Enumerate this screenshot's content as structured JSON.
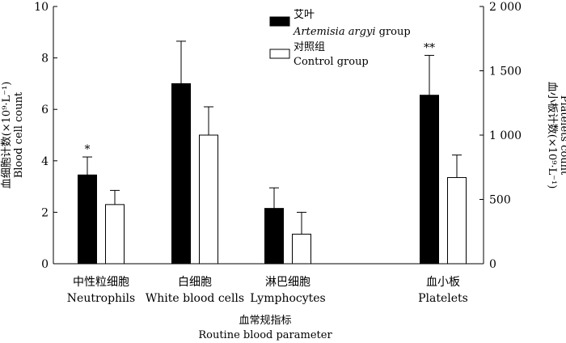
{
  "chart_data": {
    "type": "bar",
    "left_axis": {
      "label_zh": "血细胞计数(×10⁹·L⁻¹)",
      "label_en": "Blood cell count",
      "ylim": [
        0,
        10
      ],
      "ticks": [
        "0",
        "2",
        "4",
        "6",
        "8",
        "10"
      ]
    },
    "right_axis": {
      "label_zh": "血小板计数(×10⁹·L⁻¹)",
      "label_en": "Platelets count",
      "ylim": [
        0,
        2000
      ],
      "ticks": [
        "0",
        "500",
        "1 000",
        "1 500",
        "2 000"
      ]
    },
    "x_axis": {
      "label_zh": "血常规指标",
      "label_en": "Routine blood parameter"
    },
    "categories": [
      {
        "zh": "中性粒细胞",
        "en": "Neutrophils",
        "axis": "left"
      },
      {
        "zh": "白细胞",
        "en": "White blood cells",
        "axis": "left"
      },
      {
        "zh": "淋巴细胞",
        "en": "Lymphocytes",
        "axis": "left"
      },
      {
        "zh": "血小板",
        "en": "Platelets",
        "axis": "right"
      }
    ],
    "series": [
      {
        "name_zh": "艾叶",
        "name_en_italic": "Artemisia argyi",
        "name_en_suffix": " group",
        "color": "#000000",
        "values": [
          3.45,
          7.0,
          2.15,
          1310
        ],
        "errors": [
          0.7,
          1.65,
          0.8,
          310
        ],
        "significance": [
          "*",
          "",
          "",
          "**"
        ]
      },
      {
        "name_zh": "对照组",
        "name_en": "Control group",
        "color": "#ffffff",
        "values": [
          2.3,
          5.0,
          1.15,
          670
        ],
        "errors": [
          0.55,
          1.1,
          0.85,
          175
        ],
        "significance": [
          "",
          "",
          "",
          ""
        ]
      }
    ],
    "grid": false,
    "legend_position": "top-center"
  }
}
